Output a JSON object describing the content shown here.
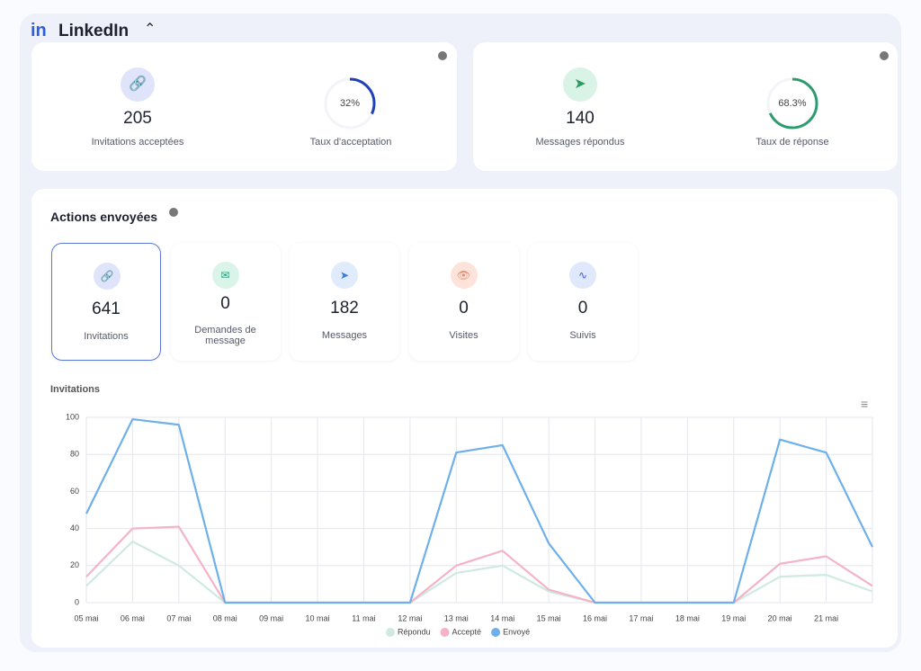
{
  "header": {
    "logo": "in",
    "title": "LinkedIn"
  },
  "cards": [
    {
      "count": 205,
      "count_label": "Invitations acceptées",
      "rate": {
        "value": 32,
        "label": "32%"
      },
      "rate_label": "Taux d'acceptation"
    },
    {
      "count": 140,
      "count_label": "Messages répondus",
      "rate": {
        "value": 68.3,
        "label": "68.3%"
      },
      "rate_label": "Taux de réponse"
    }
  ],
  "actions": {
    "title": "Actions envoyées",
    "tiles": [
      {
        "value": 641,
        "label": "Invitations"
      },
      {
        "value": 0,
        "label": "Demandes de message"
      },
      {
        "value": 182,
        "label": "Messages"
      },
      {
        "value": 0,
        "label": "Visites"
      },
      {
        "value": 0,
        "label": "Suivis"
      }
    ]
  },
  "chart_data": {
    "type": "line",
    "title": "Invitations",
    "categories": [
      "05 mai",
      "06 mai",
      "07 mai",
      "08 mai",
      "09 mai",
      "10 mai",
      "11 mai",
      "12 mai",
      "13 mai",
      "14 mai",
      "15 mai",
      "16 mai",
      "17 mai",
      "18 mai",
      "19 mai",
      "20 mai",
      "21 mai",
      null
    ],
    "series": [
      {
        "name": "Répondu",
        "color": "#cfe9e3",
        "values": [
          9,
          33,
          20,
          0,
          0,
          0,
          0,
          0,
          16,
          20,
          6,
          0,
          0,
          0,
          0,
          14,
          15,
          6
        ]
      },
      {
        "name": "Accepté",
        "color": "#f4b3c7",
        "values": [
          14,
          40,
          41,
          0,
          0,
          0,
          0,
          0,
          20,
          28,
          7,
          0,
          0,
          0,
          0,
          21,
          25,
          9
        ]
      },
      {
        "name": "Envoyé",
        "color": "#6db0ea",
        "values": [
          48,
          99,
          96,
          0,
          0,
          0,
          0,
          0,
          81,
          85,
          32,
          0,
          0,
          0,
          0,
          88,
          81,
          30
        ]
      }
    ],
    "ylim": [
      0,
      100
    ],
    "yticks": [
      0,
      20,
      40,
      60,
      80,
      100
    ],
    "grid": true,
    "legend": "bottom"
  }
}
